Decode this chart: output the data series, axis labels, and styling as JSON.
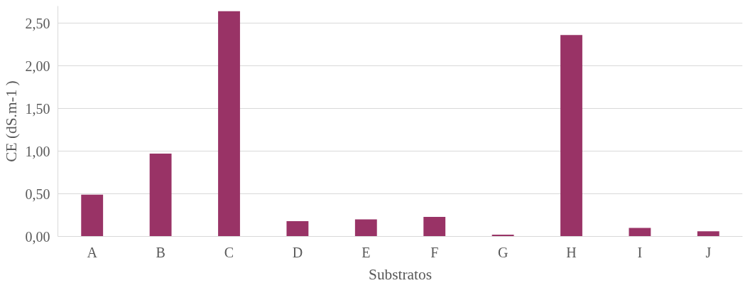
{
  "chart_data": {
    "type": "bar",
    "xlabel": "Substratos",
    "ylabel": "CE (dS.m-1 )",
    "categories": [
      "A",
      "B",
      "C",
      "D",
      "E",
      "F",
      "G",
      "H",
      "I",
      "J"
    ],
    "values": [
      0.49,
      0.97,
      2.64,
      0.18,
      0.2,
      0.23,
      0.02,
      2.36,
      0.1,
      0.06
    ],
    "color": "#993366",
    "ylim": [
      0,
      2.7
    ],
    "yticks": [
      {
        "value": 0,
        "label": "0,00"
      },
      {
        "value": 0.5,
        "label": "0,50"
      },
      {
        "value": 1,
        "label": "1,00"
      },
      {
        "value": 1.5,
        "label": "1,50"
      },
      {
        "value": 2,
        "label": "2,00"
      },
      {
        "value": 2.5,
        "label": "2,50"
      }
    ],
    "grid": "y"
  }
}
